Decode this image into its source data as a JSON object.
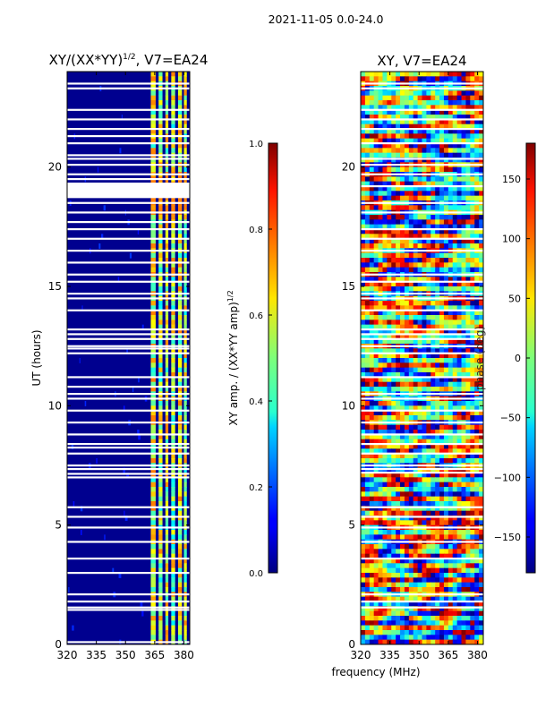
{
  "figure": {
    "suptitle": "2021-11-05 0.0-24.0",
    "shared_xlabel": "frequency (MHz)"
  },
  "chart_data": [
    {
      "type": "heatmap",
      "title_main": "XY/(XX*YY)",
      "title_sup": "1/2",
      "title_tail": ", V7=EA24",
      "xlabel": "frequency (MHz)",
      "ylabel": "UT (hours)",
      "xlim": [
        320,
        383
      ],
      "ylim": [
        0,
        24
      ],
      "xticks": [
        320,
        335,
        350,
        365,
        380
      ],
      "yticks": [
        0,
        5,
        10,
        15,
        20
      ],
      "colorbar": {
        "label_main": "XY amp. / (XX*YY amp)",
        "label_sup": "1/2",
        "range": [
          0.0,
          1.0
        ],
        "ticks": [
          "0.0",
          "0.2",
          "0.4",
          "0.6",
          "0.8",
          "1.0"
        ],
        "tick_values": [
          0.0,
          0.2,
          0.4,
          0.6,
          0.8,
          1.0
        ],
        "colormap": "jet"
      },
      "gap_hours": [
        0.1,
        1.45,
        1.55,
        1.8,
        2.1,
        3.0,
        3.6,
        4.3,
        4.9,
        5.35,
        5.75,
        7.0,
        7.15,
        7.35,
        7.5,
        8.0,
        8.25,
        8.4,
        8.8,
        9.3,
        9.8,
        10.3,
        10.5,
        10.8,
        11.2,
        12.2,
        12.4,
        12.5,
        12.8,
        13.0,
        13.2,
        14.0,
        14.5,
        14.7,
        15.2,
        15.5,
        16.0,
        16.5,
        17.0,
        17.4,
        17.7,
        18.1,
        18.5,
        18.8,
        19.0,
        19.2,
        19.5,
        19.7,
        20.1,
        20.35,
        20.5,
        21.0,
        21.3,
        21.6,
        22.0,
        22.4,
        23.3,
        23.5
      ],
      "gap_bands": [
        [
          18.7,
          19.35
        ]
      ]
    },
    {
      "type": "heatmap",
      "title": "XY, V7=EA24",
      "xlabel": "frequency (MHz)",
      "ylabel": "",
      "xlim": [
        320,
        383
      ],
      "ylim": [
        0,
        24
      ],
      "xticks": [
        320,
        335,
        350,
        365,
        380
      ],
      "yticks": [
        0,
        5,
        10,
        15,
        20
      ],
      "colorbar": {
        "label": "phase (deg)",
        "range": [
          -180,
          180
        ],
        "ticks": [
          "−150",
          "−100",
          "−50",
          "0",
          "50",
          "100",
          "150"
        ],
        "tick_values": [
          -150,
          -100,
          -50,
          0,
          50,
          100,
          150
        ],
        "colormap": "jet"
      },
      "gap_hours": [
        1.55,
        1.8,
        2.1,
        3.6,
        4.3,
        4.9,
        5.35,
        5.75,
        7.2,
        7.35,
        7.5,
        8.0,
        8.4,
        8.8,
        9.3,
        9.8,
        10.3,
        10.5,
        11.2,
        12.2,
        12.5,
        12.8,
        13.0,
        13.2,
        14.0,
        14.5,
        14.7,
        15.2,
        15.5,
        16.5,
        17.0,
        17.4,
        18.1,
        18.5,
        19.2,
        19.7,
        20.1,
        20.35,
        21.0,
        21.6,
        22.0,
        22.4,
        23.3,
        23.5
      ],
      "gap_bands": []
    }
  ]
}
